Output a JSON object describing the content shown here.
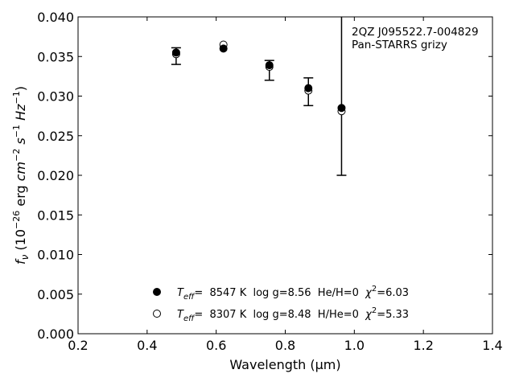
{
  "chart_data": {
    "type": "scatter",
    "annotation": [
      "2QZ J095522.7-004829",
      "Pan-STARRS grizy"
    ],
    "xlabel": "Wavelength (μm)",
    "ylabel": "f_ν (10^-26 erg cm^-2 s^-1 Hz^-1)",
    "xlim": [
      0.2,
      1.4
    ],
    "ylim": [
      0.0,
      0.04
    ],
    "xticks": [
      "0.2",
      "0.4",
      "0.6",
      "0.8",
      "1.0",
      "1.2",
      "1.4"
    ],
    "yticks": [
      "0.000",
      "0.005",
      "0.010",
      "0.015",
      "0.020",
      "0.025",
      "0.030",
      "0.035",
      "0.040"
    ],
    "observed": {
      "x": [
        0.484,
        0.621,
        0.754,
        0.867,
        0.963
      ],
      "y": [
        0.0351,
        0.0359,
        0.0333,
        0.0306,
        0.0284
      ],
      "yerr_low": [
        0.0011,
        0.0,
        0.0013,
        0.0018,
        0.0084
      ],
      "yerr_high": [
        0.001,
        0.0,
        0.0012,
        0.0017,
        0.015
      ]
    },
    "series": [
      {
        "name": "T_eff= 8547 K  log g=8.56  He/H=0  χ²=6.03",
        "label": {
          "teff": "T",
          "teff_sub": "eff",
          "rest": "=  8547 K  log g=8.56  He/H=0  ",
          "chi": "χ",
          "chi_sup": "2",
          "chi_rest": "=6.03"
        },
        "marker": "filled",
        "x": [
          0.484,
          0.621,
          0.754,
          0.867,
          0.963
        ],
        "y": [
          0.0355,
          0.036,
          0.0339,
          0.031,
          0.0285
        ]
      },
      {
        "name": "T_eff= 8307 K  log g=8.48  H/He=0  χ²=5.33",
        "label": {
          "teff": "T",
          "teff_sub": "eff",
          "rest": "=  8307 K  log g=8.48  H/He=0  ",
          "chi": "χ",
          "chi_sup": "2",
          "chi_rest": "=5.33"
        },
        "marker": "open",
        "x": [
          0.484,
          0.621,
          0.754,
          0.867,
          0.963
        ],
        "y": [
          0.0353,
          0.0365,
          0.0337,
          0.0307,
          0.0281
        ]
      }
    ],
    "legend_position": "lower-center",
    "grid": false
  }
}
